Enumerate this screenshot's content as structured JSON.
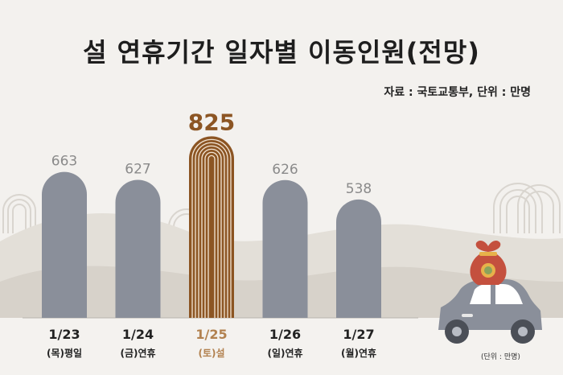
{
  "title": "설 연휴기간 일자별 이동인원(전망)",
  "source_note": "자료 : 국토교통부, 단위 : 만명",
  "unit_note": "(단위 : 만명)",
  "colors": {
    "bar": "#8a8f9a",
    "highlight": "#8c5523",
    "label": "#8a8a8a",
    "background": "#f3f1ee"
  },
  "chart_data": {
    "type": "bar",
    "categories": [
      "1/23",
      "1/24",
      "1/25",
      "1/26",
      "1/27"
    ],
    "day_labels": [
      "(목)평일",
      "(금)연휴",
      "(토)설",
      "(일)연휴",
      "(월)연휴"
    ],
    "values": [
      663,
      627,
      825,
      626,
      538
    ],
    "highlight_index": 2,
    "title": "설 연휴기간 일자별 이동인원(전망)",
    "xlabel": "",
    "ylabel": "",
    "unit": "만명",
    "grid": false
  }
}
